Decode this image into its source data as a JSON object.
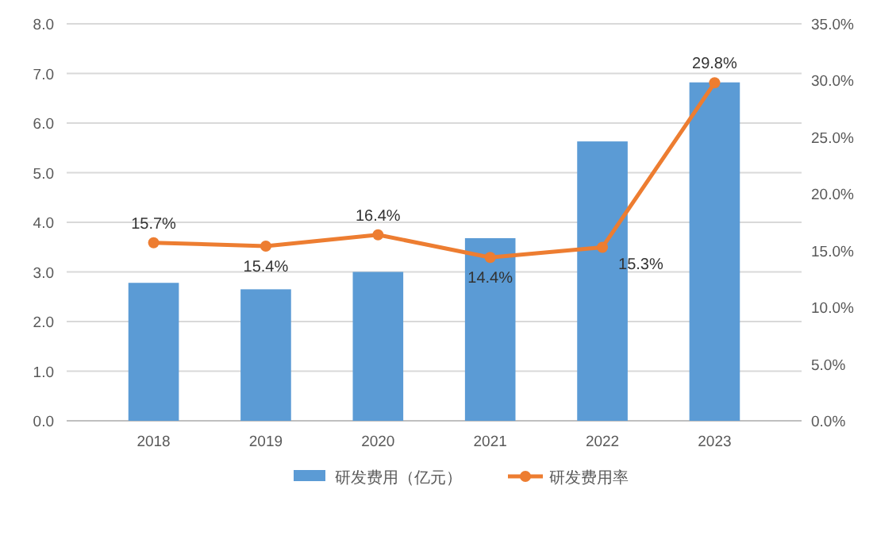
{
  "chart_data": {
    "type": "bar",
    "categories": [
      "2018",
      "2019",
      "2020",
      "2021",
      "2022",
      "2023"
    ],
    "series": [
      {
        "name": "研发费用（亿元）",
        "color": "#5b9bd5",
        "values": [
          2.78,
          2.65,
          3.0,
          3.68,
          5.63,
          6.82
        ]
      },
      {
        "name": "研发费用率",
        "type": "line",
        "axis": "y2",
        "color": "#ed7d31",
        "values": [
          15.7,
          15.4,
          16.4,
          14.4,
          15.3,
          29.8
        ],
        "value_labels": [
          "15.7%",
          "15.4%",
          "16.4%",
          "14.4%",
          "15.3%",
          "29.8%"
        ]
      }
    ],
    "ylim": [
      0,
      8
    ],
    "yticks": [
      {
        "value": 0,
        "label": "0.0"
      },
      {
        "value": 1,
        "label": "1.0"
      },
      {
        "value": 2,
        "label": "2.0"
      },
      {
        "value": 3,
        "label": "3.0"
      },
      {
        "value": 4,
        "label": "4.0"
      },
      {
        "value": 5,
        "label": "5.0"
      },
      {
        "value": 6,
        "label": "6.0"
      },
      {
        "value": 7,
        "label": "7.0"
      },
      {
        "value": 8,
        "label": "8.0"
      }
    ],
    "y2lim": [
      0,
      35
    ],
    "y2ticks": [
      {
        "value": 0,
        "label": "0.0%"
      },
      {
        "value": 5,
        "label": "5.0%"
      },
      {
        "value": 10,
        "label": "10.0%"
      },
      {
        "value": 15,
        "label": "15.0%"
      },
      {
        "value": 20,
        "label": "20.0%"
      },
      {
        "value": 25,
        "label": "25.0%"
      },
      {
        "value": 30,
        "label": "30.0%"
      },
      {
        "value": 35,
        "label": "35.0%"
      }
    ],
    "grid": "y",
    "legend": "bottom",
    "marker": "circle"
  }
}
